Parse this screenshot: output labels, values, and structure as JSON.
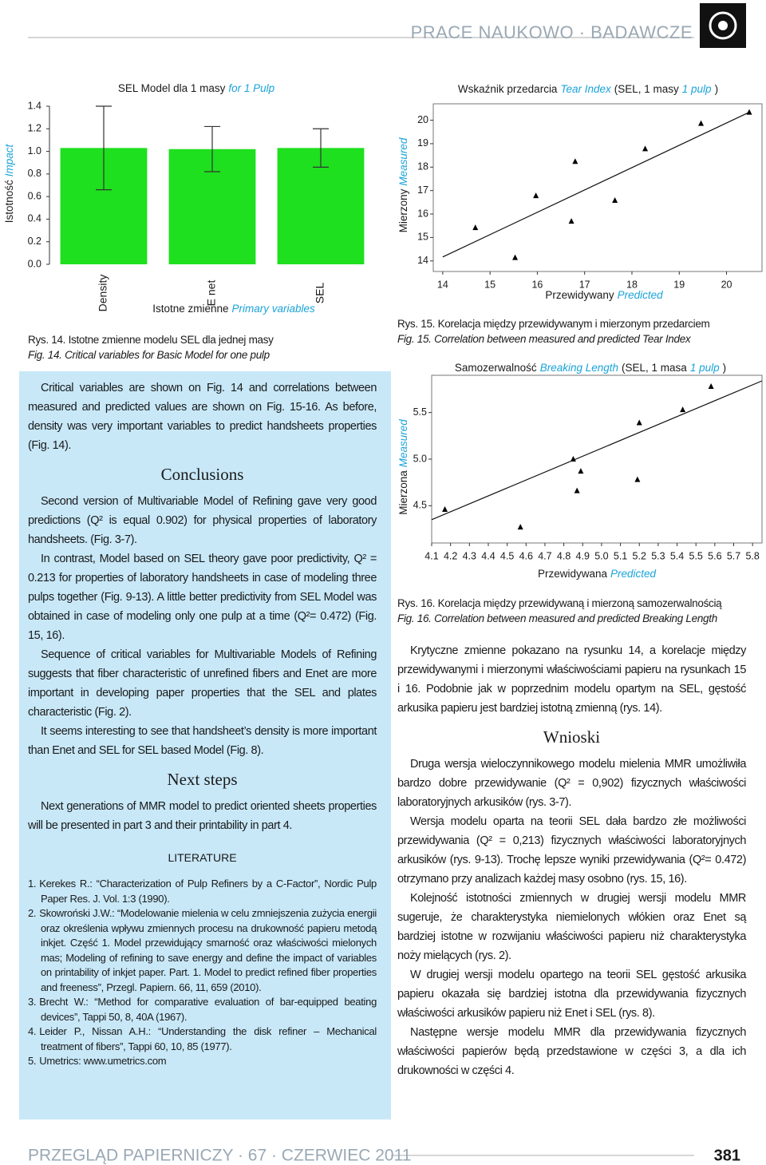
{
  "header": {
    "title": "PRACE NAUKOWO · BADAWCZE"
  },
  "chart_data": [
    {
      "type": "bar",
      "title_parts": [
        "SEL Model dla 1 masy",
        "for 1 Pulp"
      ],
      "y_label_parts": [
        "Istotność",
        "Impact"
      ],
      "x_label_parts": [
        "Istotne zmienne",
        "Primary variables"
      ],
      "categories": [
        "Density",
        "E net",
        "SEL"
      ],
      "values": [
        1.03,
        1.02,
        1.03
      ],
      "errors": [
        0.37,
        0.2,
        0.17
      ],
      "color": "#1ee01e",
      "ylim": [
        0,
        1.4
      ],
      "yticks": [
        {
          "value": 0,
          "label": "0.0"
        },
        0.2,
        0.4,
        0.6,
        0.8,
        {
          "value": 1,
          "label": "1.0"
        },
        1.2,
        1.4
      ],
      "caption_pl": "Rys. 14. Istotne zmienne modelu SEL dla jednej masy",
      "caption_en": "Fig. 14. Critical variables for Basic Model for one pulp"
    },
    {
      "type": "scatter",
      "title_parts": [
        "Wskaźnik przedarcia",
        "Tear Index",
        "(SEL, 1 masy",
        "1 pulp",
        ")"
      ],
      "y_label_parts": [
        "Mierzony",
        "Measured"
      ],
      "x_label_parts": [
        "Przewidywany",
        "Predicted"
      ],
      "x": [
        14.69,
        15.53,
        15.97,
        16.72,
        16.8,
        17.64,
        18.28,
        19.46,
        20.48
      ],
      "values": [
        15.42,
        14.14,
        16.78,
        15.69,
        18.24,
        16.58,
        18.78,
        19.86,
        20.34
      ],
      "color": "#000000",
      "trendline": {
        "x": [
          14,
          20.48
        ],
        "y": [
          14.17,
          20.34
        ]
      },
      "xlim": [
        13.8,
        20.75
      ],
      "ylim": [
        13.55,
        20.7
      ],
      "xticks": [
        14,
        15,
        16,
        17,
        18,
        19,
        20
      ],
      "yticks": [
        14,
        15,
        16,
        17,
        18,
        19,
        20
      ],
      "caption_pl": "Rys. 15. Korelacja między przewidywanym i mierzonym przedarciem",
      "caption_en": "Fig. 15. Correlation between measured and predicted Tear Index"
    },
    {
      "type": "scatter",
      "title_parts": [
        "Samozerwalność",
        "Breaking Length",
        "(SEL, 1 masa",
        "1 pulp",
        ")"
      ],
      "y_label_parts": [
        "Mierzona",
        "Measured"
      ],
      "x_label_parts": [
        "Przewidywana",
        "Predicted"
      ],
      "x": [
        4.17,
        4.57,
        4.85,
        4.87,
        4.89,
        5.19,
        5.2,
        5.43,
        5.58
      ],
      "values": [
        4.46,
        4.27,
        5.0,
        4.66,
        4.87,
        4.78,
        5.39,
        5.53,
        5.78
      ],
      "color": "#000000",
      "trendline": {
        "x": [
          4.1,
          5.85
        ],
        "y": [
          4.35,
          5.84
        ]
      },
      "xlim": [
        4.1,
        5.85
      ],
      "ylim": [
        4.1,
        5.9
      ],
      "xticks": [
        4.1,
        4.2,
        4.3,
        4.4,
        4.5,
        4.6,
        4.7,
        4.8,
        4.9,
        {
          "value": 5,
          "label": "5.0"
        },
        5.1,
        5.2,
        5.3,
        5.4,
        5.5,
        5.6,
        5.7,
        5.8
      ],
      "yticks": [
        4.5,
        {
          "value": 5,
          "label": "5.0"
        },
        5.5
      ],
      "caption_pl": "Rys. 16. Korelacja między przewidywaną i mierzoną samozerwalnością",
      "caption_en": "Fig. 16. Correlation between measured and predicted Breaking Length"
    }
  ],
  "left_column": {
    "intro": "Critical variables are shown on Fig. 14 and correlations between measured and predicted values are shown on Fig. 15-16. As before, density was very important variables to predict handsheets properties (Fig. 14).",
    "conclusions_heading": "Conclusions",
    "conclusions": [
      "Second version of Multivariable Model of Refining gave very good predictions (Q² is equal 0.902) for physical properties of laboratory handsheets. (Fig. 3-7).",
      "In contrast, Model based on SEL theory gave poor predictivity, Q² = 0.213 for properties of laboratory handsheets in case of modeling three pulps together (Fig. 9-13). A little better predictivity from SEL Model was obtained in case of modeling only one pulp at a time (Q²= 0.472) (Fig. 15, 16).",
      "Sequence of critical variables for Multivariable Models of Refining suggests that fiber characteristic of unrefined fibers and Enet are more important in developing paper properties that the SEL and plates characteristic (Fig. 2).",
      "It seems interesting to see that handsheet’s density is more important than Enet and SEL for SEL based Model (Fig. 8)."
    ],
    "next_heading": "Next steps",
    "next": "Next generations of MMR model to predict oriented sheets properties will be presented in part 3 and their printability in part 4.",
    "literature_heading": "LITERATURE",
    "literature": [
      {
        "number": "1.",
        "text": "Kerekes R.: “Characterization of Pulp Refiners by a C-Factor”, Nordic Pulp Paper Res. J. Vol. 1:3 (1990)."
      },
      {
        "number": "2.",
        "text": "Skowroński J.W.: “Modelowanie mielenia w celu zmniejszenia zużycia energii oraz określenia wpływu zmiennych procesu na drukowność papieru metodą inkjet. Część 1. Model przewidujący smarność oraz właściwości mielonych mas; Modeling of refining to save energy and define the impact of variables on printability of inkjet paper. Part. 1. Model to predict refined fiber properties and freeness”, Przegl. Papiern. 66, 11, 659 (2010)."
      },
      {
        "number": "3.",
        "text": "Brecht W.: “Method for comparative evaluation of bar-equipped beating devices”, Tappi 50, 8, 40A (1967)."
      },
      {
        "number": "4.",
        "text": "Leider P., Nissan A.H.: “Understanding the disk refiner – Mechanical treatment of fibers”, Tappi 60, 10, 85 (1977)."
      },
      {
        "number": "5.",
        "text": "Umetrics: www.umetrics.com"
      }
    ]
  },
  "right_column": {
    "intro": "Krytyczne zmienne pokazano na rysunku 14, a korelacje między przewidywanymi i mierzonymi właściwościami papieru na rysunkach 15 i 16. Podobnie jak w poprzednim modelu opartym na SEL, gęstość arkusika papieru jest bardziej istotną zmienną (rys. 14).",
    "conclusions_heading": "Wnioski",
    "conclusions": [
      "Druga wersja wieloczynnikowego modelu mielenia MMR umożliwiła bardzo dobre przewidywanie (Q² = 0,902) fizycznych właściwości laboratoryjnych arkusików (rys. 3-7).",
      "Wersja modelu oparta na teorii SEL dała bardzo złe możliwości przewidywania (Q² = 0,213) fizycznych właściwości laboratoryjnych arkusików (rys. 9-13). Trochę lepsze wyniki przewidywania (Q²= 0.472) otrzymano przy analizach każdej masy osobno (rys. 15, 16).",
      "Kolejność istotności zmiennych w drugiej wersji modelu MMR sugeruje, że charakterystyka niemielonych włókien oraz Enet są bardziej istotne w rozwijaniu właściwości papieru niż charakterystyka noży mielących (rys. 2).",
      "W drugiej wersji modelu opartego na teorii SEL gęstość arkusika papieru okazała się bardziej istotna dla przewidywania fizycznych właściwości arkusików papieru niż Enet i SEL (rys. 8).",
      "Następne wersje modelu MMR dla przewidywania fizycznych właściwości papierów będą przedstawione w części 3, a dla ich drukowności w części 4."
    ]
  },
  "footer": {
    "journal": "PRZEGLĄD PAPIERNICZY · 67 · CZERWIEC 2011",
    "page": "381"
  }
}
